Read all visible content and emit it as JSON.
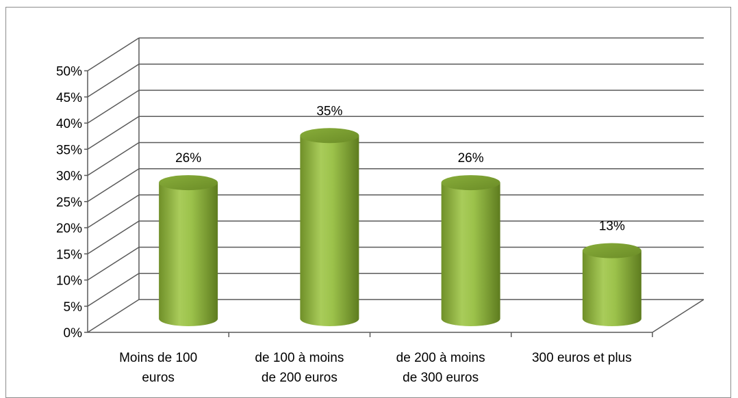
{
  "chart_data": {
    "type": "bar",
    "style": "3d-cylinder",
    "categories": [
      [
        "Moins de 100",
        "euros"
      ],
      [
        "de 100 à moins",
        "de 200 euros"
      ],
      [
        "de 200 à moins",
        "de 300 euros"
      ],
      [
        "300 euros et plus"
      ]
    ],
    "values": [
      26,
      35,
      26,
      13
    ],
    "data_labels": [
      "26%",
      "35%",
      "26%",
      "13%"
    ],
    "title": "",
    "xlabel": "",
    "ylabel": "",
    "ylim": [
      0,
      50
    ],
    "y_ticks": [
      0,
      5,
      10,
      15,
      20,
      25,
      30,
      35,
      40,
      45,
      50
    ],
    "y_tick_labels": [
      "0%",
      "5%",
      "10%",
      "15%",
      "20%",
      "25%",
      "30%",
      "35%",
      "40%",
      "45%",
      "50%"
    ],
    "grid": true,
    "legend": "none",
    "bar_color": "#8db33c",
    "bar_top_color": "#76992e"
  }
}
